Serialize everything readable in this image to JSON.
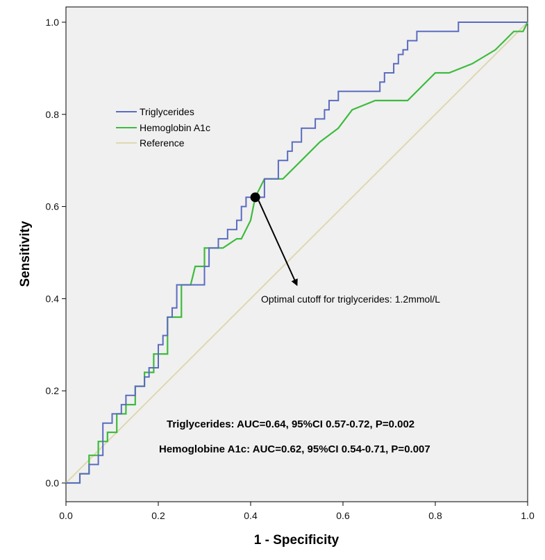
{
  "chart_data": {
    "type": "line",
    "xlabel": "1 - Specificity",
    "ylabel": "Sensitivity",
    "xlim": [
      0,
      1
    ],
    "ylim": [
      0,
      1
    ],
    "xticks": [
      "0.0",
      "0.2",
      "0.4",
      "0.6",
      "0.8",
      "1.0"
    ],
    "yticks": [
      "0.0",
      "0.2",
      "0.4",
      "0.6",
      "0.8",
      "1.0"
    ],
    "grid": false,
    "legend_position": "upper-left",
    "series": [
      {
        "name": "Triglycerides",
        "color": "#5a6bbf",
        "x": [
          0,
          0.03,
          0.03,
          0.05,
          0.05,
          0.07,
          0.07,
          0.08,
          0.08,
          0.1,
          0.1,
          0.12,
          0.12,
          0.13,
          0.13,
          0.15,
          0.15,
          0.17,
          0.17,
          0.18,
          0.18,
          0.2,
          0.2,
          0.21,
          0.21,
          0.22,
          0.22,
          0.23,
          0.23,
          0.24,
          0.24,
          0.25,
          0.25,
          0.27,
          0.27,
          0.3,
          0.3,
          0.31,
          0.31,
          0.33,
          0.33,
          0.35,
          0.35,
          0.37,
          0.37,
          0.38,
          0.38,
          0.39,
          0.39,
          0.41,
          0.41,
          0.43,
          0.43,
          0.46,
          0.46,
          0.48,
          0.48,
          0.49,
          0.49,
          0.51,
          0.51,
          0.54,
          0.54,
          0.56,
          0.56,
          0.57,
          0.57,
          0.59,
          0.59,
          0.6,
          0.6,
          0.61,
          0.61,
          0.62,
          0.62,
          0.68,
          0.68,
          0.69,
          0.69,
          0.71,
          0.71,
          0.72,
          0.72,
          0.73,
          0.73,
          0.74,
          0.74,
          0.76,
          0.76,
          0.85,
          0.85,
          1.0
        ],
        "y": [
          0,
          0,
          0.02,
          0.02,
          0.04,
          0.04,
          0.06,
          0.06,
          0.13,
          0.13,
          0.15,
          0.15,
          0.17,
          0.17,
          0.19,
          0.19,
          0.21,
          0.21,
          0.23,
          0.23,
          0.25,
          0.25,
          0.3,
          0.3,
          0.32,
          0.32,
          0.36,
          0.36,
          0.38,
          0.38,
          0.43,
          0.43,
          0.43,
          0.43,
          0.43,
          0.43,
          0.47,
          0.47,
          0.51,
          0.51,
          0.53,
          0.53,
          0.55,
          0.55,
          0.57,
          0.57,
          0.6,
          0.6,
          0.62,
          0.62,
          0.62,
          0.62,
          0.66,
          0.66,
          0.7,
          0.7,
          0.72,
          0.72,
          0.74,
          0.74,
          0.77,
          0.77,
          0.79,
          0.79,
          0.81,
          0.81,
          0.83,
          0.83,
          0.85,
          0.85,
          0.85,
          0.85,
          0.85,
          0.85,
          0.85,
          0.85,
          0.87,
          0.87,
          0.89,
          0.89,
          0.91,
          0.91,
          0.93,
          0.93,
          0.94,
          0.94,
          0.96,
          0.96,
          0.98,
          0.98,
          1.0,
          1.0
        ]
      },
      {
        "name": "Hemoglobin A1c",
        "color": "#3dbb3d",
        "x": [
          0,
          0.03,
          0.03,
          0.05,
          0.05,
          0.07,
          0.07,
          0.09,
          0.09,
          0.11,
          0.11,
          0.13,
          0.13,
          0.15,
          0.15,
          0.17,
          0.17,
          0.19,
          0.19,
          0.22,
          0.22,
          0.25,
          0.25,
          0.27,
          0.28,
          0.3,
          0.3,
          0.34,
          0.37,
          0.38,
          0.4,
          0.41,
          0.43,
          0.47,
          0.51,
          0.55,
          0.59,
          0.62,
          0.67,
          0.74,
          0.8,
          0.83,
          0.88,
          0.93,
          0.95,
          0.97,
          0.99,
          1.0
        ],
        "y": [
          0,
          0.0,
          0.02,
          0.02,
          0.06,
          0.06,
          0.09,
          0.09,
          0.11,
          0.11,
          0.15,
          0.15,
          0.17,
          0.17,
          0.21,
          0.21,
          0.24,
          0.24,
          0.28,
          0.28,
          0.36,
          0.36,
          0.43,
          0.43,
          0.47,
          0.47,
          0.51,
          0.51,
          0.53,
          0.53,
          0.57,
          0.62,
          0.66,
          0.66,
          0.7,
          0.74,
          0.77,
          0.81,
          0.83,
          0.83,
          0.89,
          0.89,
          0.91,
          0.94,
          0.96,
          0.98,
          0.98,
          1.0
        ]
      },
      {
        "name": "Reference",
        "color": "#ddd8b0",
        "x": [
          0,
          1
        ],
        "y": [
          0,
          1
        ]
      }
    ],
    "annotations": [
      {
        "text": "Optimal cutoff for triglycerides: 1.2mmol/L",
        "point": [
          0.41,
          0.62
        ],
        "arrow_to": [
          0.5,
          0.43
        ]
      }
    ],
    "stats_text": [
      "Triglycerides: AUC=0.64, 95%CI 0.57-0.72, P=0.002",
      "Hemoglobine A1c: AUC=0.62, 95%CI 0.54-0.71, P=0.007"
    ]
  }
}
